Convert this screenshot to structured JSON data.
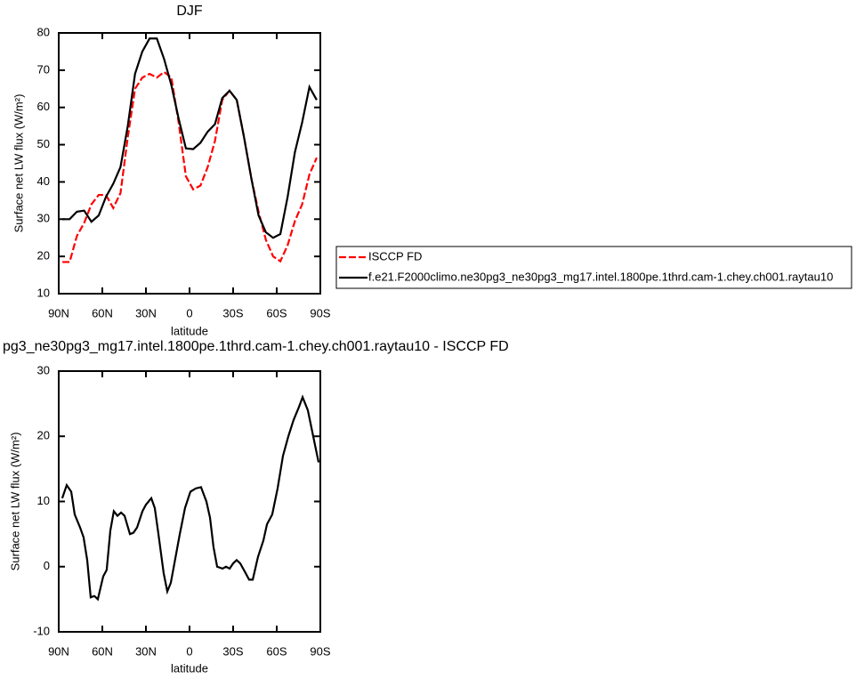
{
  "chart_data": [
    {
      "type": "line",
      "title": "DJF",
      "xlabel": "latitude",
      "ylabel": "Surface net LW flux (W/m²)",
      "x": [
        87.5,
        82.5,
        77.5,
        72.5,
        67.5,
        62.5,
        57.5,
        52.5,
        47.5,
        42.5,
        37.5,
        32.5,
        27.5,
        22.5,
        17.5,
        12.5,
        7.5,
        2.5,
        -2.5,
        -7.5,
        -12.5,
        -17.5,
        -22.5,
        -27.5,
        -32.5,
        -37.5,
        -42.5,
        -47.5,
        -52.5,
        -57.5,
        -62.5,
        -67.5,
        -72.5,
        -77.5,
        -82.5,
        -87.5
      ],
      "series": [
        {
          "name": "ISCCP FD",
          "color": "#ff0000",
          "dashed": true,
          "values": [
            18.5,
            18.5,
            25.5,
            29,
            34,
            36.5,
            36.5,
            33,
            37,
            52,
            65,
            68,
            69,
            68,
            69.5,
            68,
            56,
            41.5,
            38,
            39,
            44,
            51,
            62,
            64.5,
            62,
            52,
            41,
            32,
            24.5,
            20,
            18.7,
            23,
            29.5,
            34,
            42,
            46.5
          ]
        },
        {
          "name": "f.e21.F2000climo.ne30pg3_ne30pg3_mg17.intel.1800pe.1thrd.cam-1.chey.ch001.raytau10",
          "color": "#000000",
          "dashed": false,
          "values": [
            30,
            30,
            32,
            32.3,
            29.3,
            31,
            36,
            39.5,
            44,
            55,
            69,
            75,
            78.5,
            78.5,
            73,
            66,
            57,
            49,
            48.8,
            50.5,
            53.5,
            55.5,
            62.5,
            64.5,
            62,
            52,
            41,
            31,
            26.5,
            25,
            26,
            36,
            48,
            56,
            65.5,
            62
          ]
        }
      ],
      "xlim": [
        90,
        -90
      ],
      "ylim": [
        10,
        80
      ],
      "xticks": [
        {
          "value": 90,
          "label": "90N"
        },
        {
          "value": 60,
          "label": "60N"
        },
        {
          "value": 30,
          "label": "30N"
        },
        0,
        {
          "value": -30,
          "label": "30S"
        },
        {
          "value": -60,
          "label": "60S"
        },
        {
          "value": -90,
          "label": "90S"
        }
      ],
      "yticks": [
        10,
        20,
        30,
        40,
        50,
        60,
        70,
        80
      ],
      "legend": "right"
    },
    {
      "type": "line",
      "title": "pg3_ne30pg3_mg17.intel.1800pe.1thrd.cam-1.chey.ch001.raytau10 - ISCCP FD",
      "xlabel": "latitude",
      "ylabel": "Surface net LW flux (W/m²)",
      "x": [
        87.6,
        84.5,
        81.4,
        79.0,
        75.3,
        72.9,
        70.4,
        68.0,
        65.5,
        63.1,
        59.4,
        57.0,
        54.5,
        52.1,
        49.6,
        47.1,
        44.7,
        41.0,
        38.6,
        36.1,
        32.4,
        30.0,
        26.3,
        23.9,
        21.4,
        17.8,
        15.3,
        12.9,
        10.4,
        6.7,
        3.1,
        -0.6,
        -4.3,
        -7.9,
        -11.6,
        -14.1,
        -16.5,
        -19.0,
        -22.7,
        -25.1,
        -27.6,
        -30.0,
        -32.4,
        -34.9,
        -38.6,
        -41.0,
        -43.5,
        -47.1,
        -50.8,
        -53.3,
        -56.9,
        -60.6,
        -64.3,
        -68.0,
        -71.6,
        -75.3,
        -77.8,
        -81.4,
        -85.1,
        -88.8
      ],
      "series": [
        {
          "color": "#000000",
          "dashed": false,
          "values": [
            10.5,
            12.5,
            11.5,
            8,
            6,
            4.5,
            1,
            -4.7,
            -4.5,
            -5,
            -1.5,
            -0.5,
            5.5,
            8.5,
            7.8,
            8.3,
            7.8,
            5,
            5.2,
            6,
            8.5,
            9.5,
            10.5,
            9,
            5,
            -1,
            -3.8,
            -2.5,
            0.5,
            5,
            9,
            11.5,
            12,
            12.2,
            10,
            7.5,
            3,
            0,
            -0.3,
            0,
            -0.3,
            0.5,
            1,
            0.5,
            -1,
            -2,
            -2,
            1.5,
            4,
            6.5,
            8,
            12,
            17,
            20,
            22.5,
            24.5,
            26,
            24,
            20,
            16
          ]
        }
      ],
      "xlim": [
        90,
        -90
      ],
      "ylim": [
        -10,
        30
      ],
      "xticks": [
        {
          "value": 90,
          "label": "90N"
        },
        {
          "value": 60,
          "label": "60N"
        },
        {
          "value": 30,
          "label": "30N"
        },
        0,
        {
          "value": -30,
          "label": "30S"
        },
        {
          "value": -60,
          "label": "60S"
        },
        {
          "value": -90,
          "label": "90S"
        }
      ],
      "yticks": [
        -10,
        0,
        10,
        20,
        30
      ]
    }
  ]
}
